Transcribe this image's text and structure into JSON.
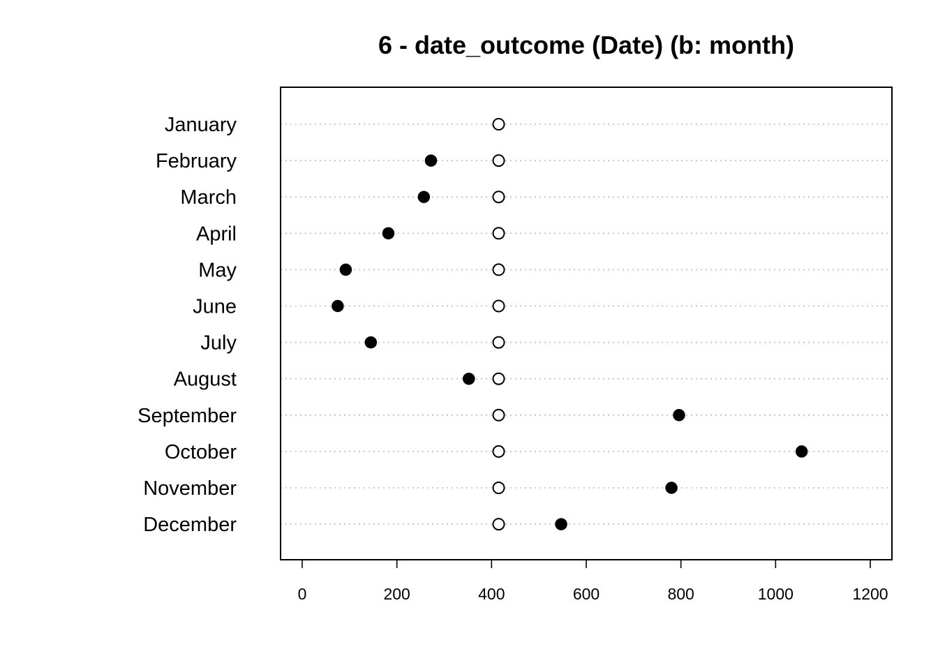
{
  "chart_data": {
    "type": "scatter",
    "title": "6 - date_outcome (Date) (b: month)",
    "xlabel": "",
    "ylabel": "",
    "xlim": [
      -45,
      1250
    ],
    "x_ticks": [
      0,
      200,
      400,
      600,
      800,
      1000,
      1200
    ],
    "x_tick_labels": [
      "0",
      "200",
      "400",
      "600",
      "800",
      "1000",
      "1200"
    ],
    "grid": "horizontal dotted lines",
    "legend": "none",
    "categories": [
      "January",
      "February",
      "March",
      "April",
      "May",
      "June",
      "July",
      "August",
      "September",
      "October",
      "November",
      "December"
    ],
    "series": [
      {
        "style": "filled",
        "color": "#000000",
        "values": [
          null,
          272,
          257,
          182,
          92,
          75,
          145,
          352,
          796,
          1055,
          780,
          547
        ]
      },
      {
        "style": "open",
        "color": "#000000",
        "values": [
          415,
          415,
          415,
          415,
          415,
          415,
          415,
          415,
          415,
          415,
          415,
          415
        ]
      }
    ]
  }
}
